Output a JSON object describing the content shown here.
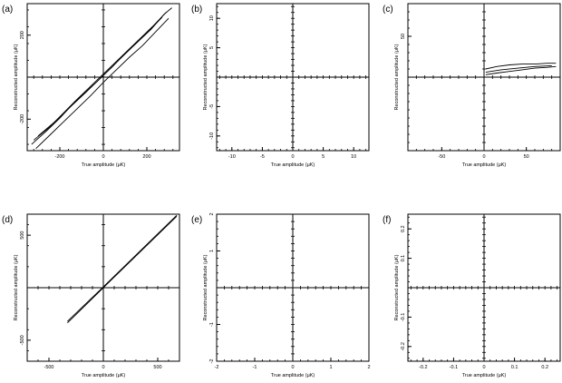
{
  "chart_data": [
    {
      "type": "line",
      "panel_label": "(a)",
      "xlabel": "True amplitude (μK)",
      "ylabel": "Reconstructed amplitude (μK)",
      "xlim": [
        -350,
        350
      ],
      "ylim": [
        -350,
        350
      ],
      "xticks": [
        -200,
        0,
        200
      ],
      "yticks": [
        -200,
        200
      ],
      "series": [
        {
          "values": [
            [
              -330,
              -320
            ],
            [
              -260,
              -255
            ],
            [
              -200,
              -195
            ],
            [
              -140,
              -128
            ],
            [
              -80,
              -70
            ],
            [
              -20,
              -12
            ],
            [
              40,
              48
            ],
            [
              100,
              112
            ],
            [
              160,
              170
            ],
            [
              220,
              228
            ],
            [
              280,
              300
            ],
            [
              315,
              330
            ]
          ]
        },
        {
          "values": [
            [
              -320,
              -300
            ],
            [
              -250,
              -240
            ],
            [
              -190,
              -178
            ],
            [
              -130,
              -115
            ],
            [
              -70,
              -55
            ],
            [
              -10,
              5
            ],
            [
              50,
              65
            ],
            [
              110,
              125
            ],
            [
              170,
              185
            ],
            [
              230,
              245
            ],
            [
              290,
              310
            ]
          ]
        },
        {
          "values": [
            [
              -310,
              -340
            ],
            [
              -240,
              -270
            ],
            [
              -180,
              -210
            ],
            [
              -120,
              -150
            ],
            [
              -60,
              -90
            ],
            [
              0,
              -25
            ],
            [
              60,
              35
            ],
            [
              120,
              95
            ],
            [
              180,
              150
            ],
            [
              240,
              215
            ],
            [
              300,
              280
            ]
          ]
        },
        {
          "values": [
            [
              -300,
              -280
            ],
            [
              -220,
              -210
            ],
            [
              -150,
              -140
            ],
            [
              -80,
              -72
            ],
            [
              -10,
              -2
            ],
            [
              60,
              70
            ],
            [
              130,
              140
            ],
            [
              200,
              210
            ],
            [
              270,
              285
            ]
          ]
        }
      ]
    },
    {
      "type": "line",
      "panel_label": "(b)",
      "xlabel": "True amplitude (μK)",
      "ylabel": "Reconstructed amplitude (μK)",
      "xlim": [
        -12.5,
        12.5
      ],
      "ylim": [
        -12.5,
        12.5
      ],
      "xticks": [
        -10,
        -5,
        0,
        5,
        10
      ],
      "yticks": [
        -10,
        -5,
        5,
        10
      ],
      "series": []
    },
    {
      "type": "line",
      "panel_label": "(c)",
      "xlabel": "True amplitude (μK)",
      "ylabel": "Reconstructed amplitude (μK)",
      "xlim": [
        -90,
        90
      ],
      "ylim": [
        -90,
        90
      ],
      "xticks": [
        -50,
        0,
        50
      ],
      "yticks": [
        50
      ],
      "series": [
        {
          "values": [
            [
              2,
              10
            ],
            [
              15,
              13
            ],
            [
              30,
              15
            ],
            [
              45,
              16
            ],
            [
              60,
              16
            ],
            [
              75,
              17
            ],
            [
              85,
              17
            ]
          ]
        },
        {
          "values": [
            [
              2,
              3
            ],
            [
              15,
              5
            ],
            [
              30,
              7
            ],
            [
              45,
              9
            ],
            [
              60,
              11
            ],
            [
              75,
              12
            ],
            [
              85,
              13
            ]
          ]
        },
        {
          "values": [
            [
              2,
              6
            ],
            [
              20,
              9
            ],
            [
              40,
              11
            ],
            [
              60,
              13
            ],
            [
              80,
              14
            ]
          ]
        }
      ]
    },
    {
      "type": "line",
      "panel_label": "(d)",
      "xlabel": "True amplitude (μK)",
      "ylabel": "Reconstructed amplitude (μK)",
      "xlim": [
        -700,
        700
      ],
      "ylim": [
        -700,
        700
      ],
      "xticks": [
        -500,
        0,
        500
      ],
      "yticks": [
        -500,
        500
      ],
      "series": [
        {
          "values": [
            [
              -330,
              -335
            ],
            [
              0,
              0
            ],
            [
              675,
              680
            ]
          ]
        },
        {
          "values": [
            [
              -330,
              -320
            ],
            [
              0,
              8
            ],
            [
              675,
              690
            ]
          ]
        }
      ]
    },
    {
      "type": "line",
      "panel_label": "(e)",
      "xlabel": "True amplitude (μK)",
      "ylabel": "Reconstructed amplitude (μK)",
      "xlim": [
        -2,
        2
      ],
      "ylim": [
        -2,
        2
      ],
      "xticks": [
        -2,
        -1,
        0,
        1,
        2
      ],
      "yticks": [
        -2,
        -1,
        1,
        2
      ],
      "series": []
    },
    {
      "type": "line",
      "panel_label": "(f)",
      "xlabel": "True amplitude (μK)",
      "ylabel": "Reconstructed amplitude (μK)",
      "xlim": [
        -0.25,
        0.25
      ],
      "ylim": [
        -0.25,
        0.25
      ],
      "xticks": [
        -0.2,
        -0.1,
        0,
        0.1,
        0.2
      ],
      "yticks": [
        -0.2,
        -0.1,
        0.1,
        0.2
      ],
      "series": []
    }
  ]
}
